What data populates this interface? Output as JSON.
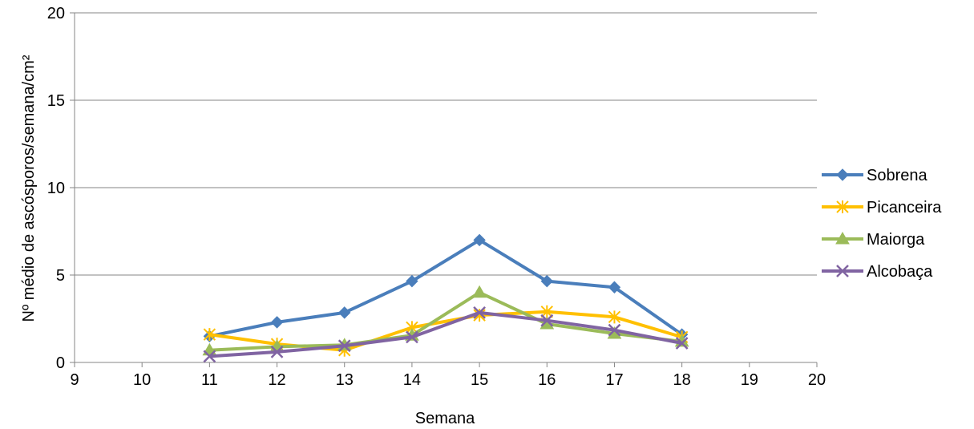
{
  "chart_data": {
    "type": "line",
    "title": "",
    "xlabel": "Semana",
    "ylabel": "Nº médio de ascósporos/semana/cm²",
    "xlim": [
      9,
      20
    ],
    "ylim": [
      0,
      20
    ],
    "x_ticks": [
      "9",
      "10",
      "11",
      "12",
      "13",
      "14",
      "15",
      "16",
      "17",
      "18",
      "19",
      "20"
    ],
    "y_ticks": [
      "0",
      "5",
      "10",
      "15",
      "20"
    ],
    "grid": "horizontal",
    "legend_position": "right",
    "x": [
      11,
      12,
      13,
      14,
      15,
      16,
      17,
      18
    ],
    "series": [
      {
        "name": "Sobrena",
        "color": "#4a7ebb",
        "marker": "diamond",
        "values": [
          1.5,
          2.3,
          2.85,
          4.65,
          7.0,
          4.65,
          4.3,
          1.6
        ]
      },
      {
        "name": "Picanceira",
        "color": "#ffc000",
        "marker": "star",
        "values": [
          1.6,
          1.05,
          0.7,
          2.0,
          2.7,
          2.9,
          2.6,
          1.45
        ]
      },
      {
        "name": "Maiorga",
        "color": "#9bbb59",
        "marker": "triangle",
        "values": [
          0.7,
          0.9,
          1.0,
          1.55,
          4.0,
          2.2,
          1.65,
          1.2
        ]
      },
      {
        "name": "Alcobaça",
        "color": "#8064a2",
        "marker": "x",
        "values": [
          0.35,
          0.6,
          0.95,
          1.45,
          2.85,
          2.4,
          1.85,
          1.1
        ]
      }
    ]
  }
}
